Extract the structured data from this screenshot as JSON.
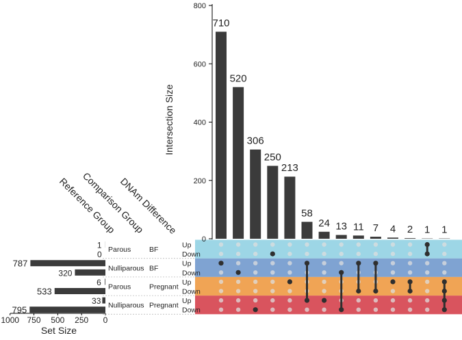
{
  "chart_data": {
    "type": "upset",
    "ylabel": "Intersection Size",
    "ylim": [
      0,
      800
    ],
    "yticks": [
      "0",
      "200",
      "400",
      "600",
      "800"
    ],
    "intersection_values": [
      710,
      520,
      306,
      250,
      213,
      58,
      24,
      13,
      11,
      7,
      4,
      2,
      1,
      1
    ],
    "intersection_labels": [
      "710",
      "520",
      "306",
      "250",
      "213",
      "58",
      "24",
      "13",
      "11",
      "7",
      "4",
      "2",
      "1",
      "1"
    ],
    "intersection_members": [
      [
        2
      ],
      [
        3
      ],
      [
        7
      ],
      [
        1
      ],
      [
        4
      ],
      [
        2,
        6
      ],
      [
        6
      ],
      [
        3,
        7
      ],
      [
        2,
        5
      ],
      [
        2,
        5
      ],
      [
        4
      ],
      [
        4,
        5
      ],
      [
        0,
        1
      ],
      [
        4,
        5,
        6,
        7
      ]
    ],
    "header_labels": {
      "reference": "Reference Group",
      "comparison": "Comparison Group",
      "dnam": "DNAm Difference"
    },
    "set_size": {
      "xlabel": "Set Size",
      "xlim": [
        0,
        1000
      ],
      "xticks": [
        "1000",
        "750",
        "500",
        "250",
        "0"
      ],
      "left_labels": [
        "",
        "787",
        "",
        "533",
        "",
        "795"
      ],
      "inner_labels": [
        "1 ",
        "0 ",
        "320",
        "6 ",
        "33",
        ""
      ]
    },
    "set_values": [
      1,
      0,
      787,
      320,
      6,
      533,
      33,
      795
    ],
    "groups": [
      {
        "reference": "Parous",
        "comparison": "BF",
        "color": "#9dd6e6"
      },
      {
        "reference": "Nulliparous",
        "comparison": "BF",
        "color": "#7fa3d2"
      },
      {
        "reference": "Parous",
        "comparison": "Pregnant",
        "color": "#f0a455"
      },
      {
        "reference": "Nulliparous",
        "comparison": "Pregnant",
        "color": "#d9545e"
      }
    ],
    "directions": [
      "Up",
      "Down"
    ],
    "colors": {
      "bar": "#3b3b3b",
      "dot_on": "#2f2f2f",
      "dot_off": "#dddddd",
      "axis": "#000000"
    }
  }
}
